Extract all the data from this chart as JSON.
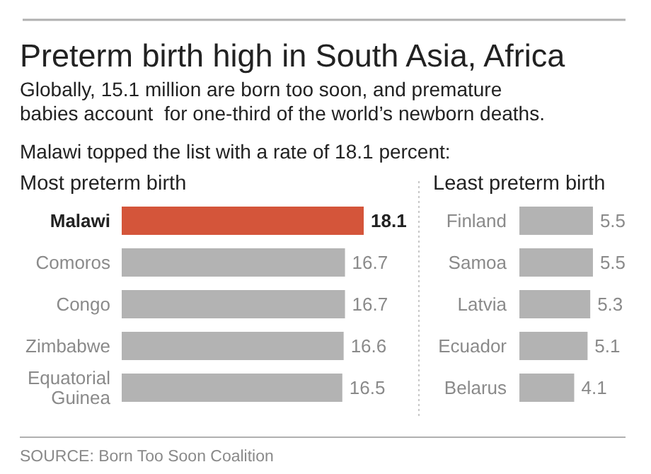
{
  "chart_data": [
    {
      "type": "bar",
      "orientation": "horizontal",
      "title": "Preterm birth high in South Asia, Africa",
      "subtitle": "Globally, 15.1 million are born too soon, and premature\nbabies account  for one-third of the world’s newborn deaths.",
      "annotations": [
        "Malawi topped the list with a rate of 18.1 percent:",
        "Most preterm birth",
        "SOURCE: Born Too Soon Coalition"
      ],
      "categories": [
        "Malawi",
        "Comoros",
        "Congo",
        "Zimbabwe",
        "Equatorial Guinea"
      ],
      "values": [
        18.1,
        16.7,
        16.7,
        16.6,
        16.5
      ],
      "colors": [
        "#d4553a",
        "#b3b3b3",
        "#b3b3b3",
        "#b3b3b3",
        "#b3b3b3"
      ],
      "data_labels": true
    },
    {
      "type": "bar",
      "orientation": "horizontal",
      "title": "Least preterm birth",
      "categories": [
        "Finland",
        "Samoa",
        "Latvia",
        "Ecuador",
        "Belarus"
      ],
      "values": [
        5.5,
        5.5,
        5.3,
        5.1,
        4.1
      ],
      "colors": [
        "#b3b3b3",
        "#b3b3b3",
        "#b3b3b3",
        "#b3b3b3",
        "#b3b3b3"
      ],
      "data_labels": true
    }
  ]
}
